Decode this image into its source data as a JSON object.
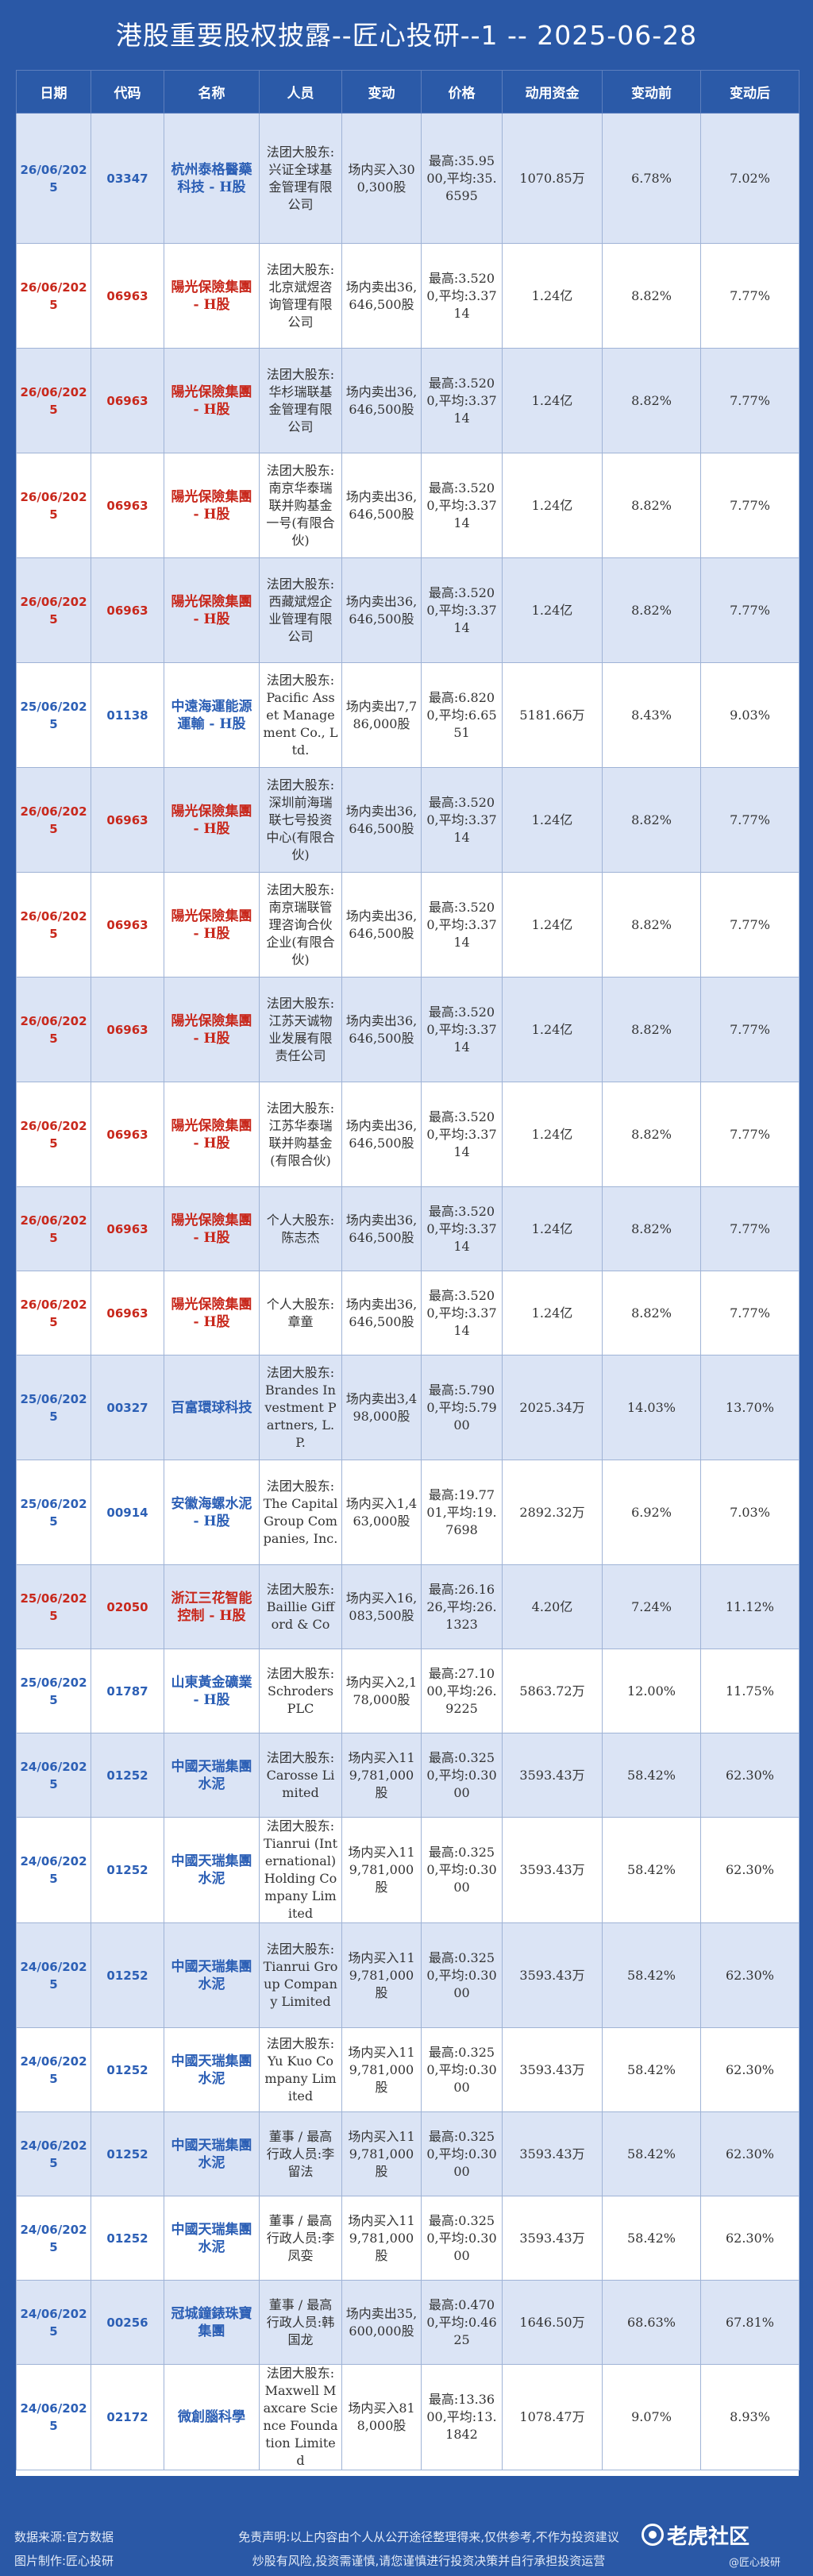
{
  "title": "港股重要股权披露--匠心投研--1 -- 2025-06-28",
  "headers": [
    "日期",
    "代码",
    "名称",
    "人员",
    "变动",
    "价格",
    "动用资金",
    "变动前",
    "变动后"
  ],
  "rows": [
    {
      "date": "26/06/2025",
      "code": "03347",
      "name": "杭州泰格醫藥科技 - H股",
      "person": "法团大股东:兴证全球基金管理有限公司",
      "change": "场内买入300,300股",
      "price": "最高:35.9500,平均:35.6595",
      "funds": "1070.85万",
      "before": "6.78%",
      "after": "7.02%",
      "red": false
    },
    {
      "date": "26/06/2025",
      "code": "06963",
      "name": "陽光保險集團 - H股",
      "person": "法团大股东:北京斌煜咨询管理有限公司",
      "change": "场内卖出36,646,500股",
      "price": "最高:3.5200,平均:3.3714",
      "funds": "1.24亿",
      "before": "8.82%",
      "after": "7.77%",
      "red": true
    },
    {
      "date": "26/06/2025",
      "code": "06963",
      "name": "陽光保險集團 - H股",
      "person": "法团大股东:华杉瑞联基金管理有限公司",
      "change": "场内卖出36,646,500股",
      "price": "最高:3.5200,平均:3.3714",
      "funds": "1.24亿",
      "before": "8.82%",
      "after": "7.77%",
      "red": true
    },
    {
      "date": "26/06/2025",
      "code": "06963",
      "name": "陽光保險集團 - H股",
      "person": "法团大股东:南京华泰瑞联并购基金一号(有限合伙)",
      "change": "场内卖出36,646,500股",
      "price": "最高:3.5200,平均:3.3714",
      "funds": "1.24亿",
      "before": "8.82%",
      "after": "7.77%",
      "red": true
    },
    {
      "date": "26/06/2025",
      "code": "06963",
      "name": "陽光保險集團 - H股",
      "person": "法团大股东:西藏斌煜企业管理有限公司",
      "change": "场内卖出36,646,500股",
      "price": "最高:3.5200,平均:3.3714",
      "funds": "1.24亿",
      "before": "8.82%",
      "after": "7.77%",
      "red": true
    },
    {
      "date": "25/06/2025",
      "code": "01138",
      "name": "中遠海運能源運輸 - H股",
      "person": "法团大股东:Pacific Asset Management Co., Ltd.",
      "change": "场内卖出7,786,000股",
      "price": "最高:6.8200,平均:6.6551",
      "funds": "5181.66万",
      "before": "8.43%",
      "after": "9.03%",
      "red": false
    },
    {
      "date": "26/06/2025",
      "code": "06963",
      "name": "陽光保險集團 - H股",
      "person": "法团大股东:深圳前海瑞联七号投资中心(有限合伙)",
      "change": "场内卖出36,646,500股",
      "price": "最高:3.5200,平均:3.3714",
      "funds": "1.24亿",
      "before": "8.82%",
      "after": "7.77%",
      "red": true
    },
    {
      "date": "26/06/2025",
      "code": "06963",
      "name": "陽光保險集團 - H股",
      "person": "法团大股东:南京瑞联管理咨询合伙企业(有限合伙)",
      "change": "场内卖出36,646,500股",
      "price": "最高:3.5200,平均:3.3714",
      "funds": "1.24亿",
      "before": "8.82%",
      "after": "7.77%",
      "red": true
    },
    {
      "date": "26/06/2025",
      "code": "06963",
      "name": "陽光保險集團 - H股",
      "person": "法团大股东:江苏天诚物业发展有限责任公司",
      "change": "场内卖出36,646,500股",
      "price": "最高:3.5200,平均:3.3714",
      "funds": "1.24亿",
      "before": "8.82%",
      "after": "7.77%",
      "red": true
    },
    {
      "date": "26/06/2025",
      "code": "06963",
      "name": "陽光保險集團 - H股",
      "person": "法团大股东:江苏华泰瑞联并购基金(有限合伙)",
      "change": "场内卖出36,646,500股",
      "price": "最高:3.5200,平均:3.3714",
      "funds": "1.24亿",
      "before": "8.82%",
      "after": "7.77%",
      "red": true
    },
    {
      "date": "26/06/2025",
      "code": "06963",
      "name": "陽光保險集團 - H股",
      "person": "个人大股东:陈志杰",
      "change": "场内卖出36,646,500股",
      "price": "最高:3.5200,平均:3.3714",
      "funds": "1.24亿",
      "before": "8.82%",
      "after": "7.77%",
      "red": true
    },
    {
      "date": "26/06/2025",
      "code": "06963",
      "name": "陽光保險集團 - H股",
      "person": "个人大股东:章童",
      "change": "场内卖出36,646,500股",
      "price": "最高:3.5200,平均:3.3714",
      "funds": "1.24亿",
      "before": "8.82%",
      "after": "7.77%",
      "red": true
    },
    {
      "date": "25/06/2025",
      "code": "00327",
      "name": "百富環球科技",
      "person": "法团大股东:Brandes Investment Partners, L.P.",
      "change": "场内卖出3,498,000股",
      "price": "最高:5.7900,平均:5.7900",
      "funds": "2025.34万",
      "before": "14.03%",
      "after": "13.70%",
      "red": false
    },
    {
      "date": "25/06/2025",
      "code": "00914",
      "name": "安徽海螺水泥 - H股",
      "person": "法团大股东:The Capital Group Companies, Inc.",
      "change": "场内买入1,463,000股",
      "price": "最高:19.7701,平均:19.7698",
      "funds": "2892.32万",
      "before": "6.92%",
      "after": "7.03%",
      "red": false
    },
    {
      "date": "25/06/2025",
      "code": "02050",
      "name": "浙江三花智能控制 - H股",
      "person": "法团大股东:Baillie Gifford & Co",
      "change": "场内买入16,083,500股",
      "price": "最高:26.1626,平均:26.1323",
      "funds": "4.20亿",
      "before": "7.24%",
      "after": "11.12%",
      "red": true
    },
    {
      "date": "25/06/2025",
      "code": "01787",
      "name": "山東黃金礦業 - H股",
      "person": "法团大股东:Schroders PLC",
      "change": "场内买入2,178,000股",
      "price": "最高:27.1000,平均:26.9225",
      "funds": "5863.72万",
      "before": "12.00%",
      "after": "11.75%",
      "red": false
    },
    {
      "date": "24/06/2025",
      "code": "01252",
      "name": "中國天瑞集團水泥",
      "person": "法团大股东:Carosse Limited",
      "change": "场内买入119,781,000股",
      "price": "最高:0.3250,平均:0.3000",
      "funds": "3593.43万",
      "before": "58.42%",
      "after": "62.30%",
      "red": false
    },
    {
      "date": "24/06/2025",
      "code": "01252",
      "name": "中國天瑞集團水泥",
      "person": "法团大股东:Tianrui (International) Holding Company Limited",
      "change": "场内买入119,781,000股",
      "price": "最高:0.3250,平均:0.3000",
      "funds": "3593.43万",
      "before": "58.42%",
      "after": "62.30%",
      "red": false
    },
    {
      "date": "24/06/2025",
      "code": "01252",
      "name": "中國天瑞集團水泥",
      "person": "法团大股东:Tianrui Group Company Limited",
      "change": "场内买入119,781,000股",
      "price": "最高:0.3250,平均:0.3000",
      "funds": "3593.43万",
      "before": "58.42%",
      "after": "62.30%",
      "red": false
    },
    {
      "date": "24/06/2025",
      "code": "01252",
      "name": "中國天瑞集團水泥",
      "person": "法团大股东:Yu Kuo Company Limited",
      "change": "场内买入119,781,000股",
      "price": "最高:0.3250,平均:0.3000",
      "funds": "3593.43万",
      "before": "58.42%",
      "after": "62.30%",
      "red": false
    },
    {
      "date": "24/06/2025",
      "code": "01252",
      "name": "中國天瑞集團水泥",
      "person": "董事 / 最高行政人员:李留法",
      "change": "场内买入119,781,000股",
      "price": "最高:0.3250,平均:0.3000",
      "funds": "3593.43万",
      "before": "58.42%",
      "after": "62.30%",
      "red": false
    },
    {
      "date": "24/06/2025",
      "code": "01252",
      "name": "中國天瑞集團水泥",
      "person": "董事 / 最高行政人员:李凤娈",
      "change": "场内买入119,781,000股",
      "price": "最高:0.3250,平均:0.3000",
      "funds": "3593.43万",
      "before": "58.42%",
      "after": "62.30%",
      "red": false
    },
    {
      "date": "24/06/2025",
      "code": "00256",
      "name": "冠城鐘錶珠寶集團",
      "person": "董事 / 最高行政人员:韩国龙",
      "change": "场内卖出35,600,000股",
      "price": "最高:0.4700,平均:0.4625",
      "funds": "1646.50万",
      "before": "68.63%",
      "after": "67.81%",
      "red": false
    },
    {
      "date": "24/06/2025",
      "code": "02172",
      "name": "微創腦科學",
      "person": "法团大股东:Maxwell Maxcare Science Foundation Limited",
      "change": "场内买入818,000股",
      "price": "最高:13.3600,平均:13.1842",
      "funds": "1078.47万",
      "before": "9.07%",
      "after": "8.93%",
      "red": false
    }
  ],
  "footer": {
    "source": "数据来源:官方数据",
    "producer": "图片制作:匠心投研",
    "disclaimer1": "免责声明:以上内容由个人从公开途径整理得来,仅供参考,不作为投资建议",
    "disclaimer2": "炒股有风险,投资需谨慎,请您谨慎进行投资决策并自行承担投资运营",
    "brand": "老虎社区",
    "brand_sub": "@匠心投研"
  },
  "colors": {
    "header_bg": "#2b5aa8",
    "row_alt": "#dbe4f5",
    "accent_red": "#c8281c",
    "accent_blue": "#2c5fb5"
  }
}
